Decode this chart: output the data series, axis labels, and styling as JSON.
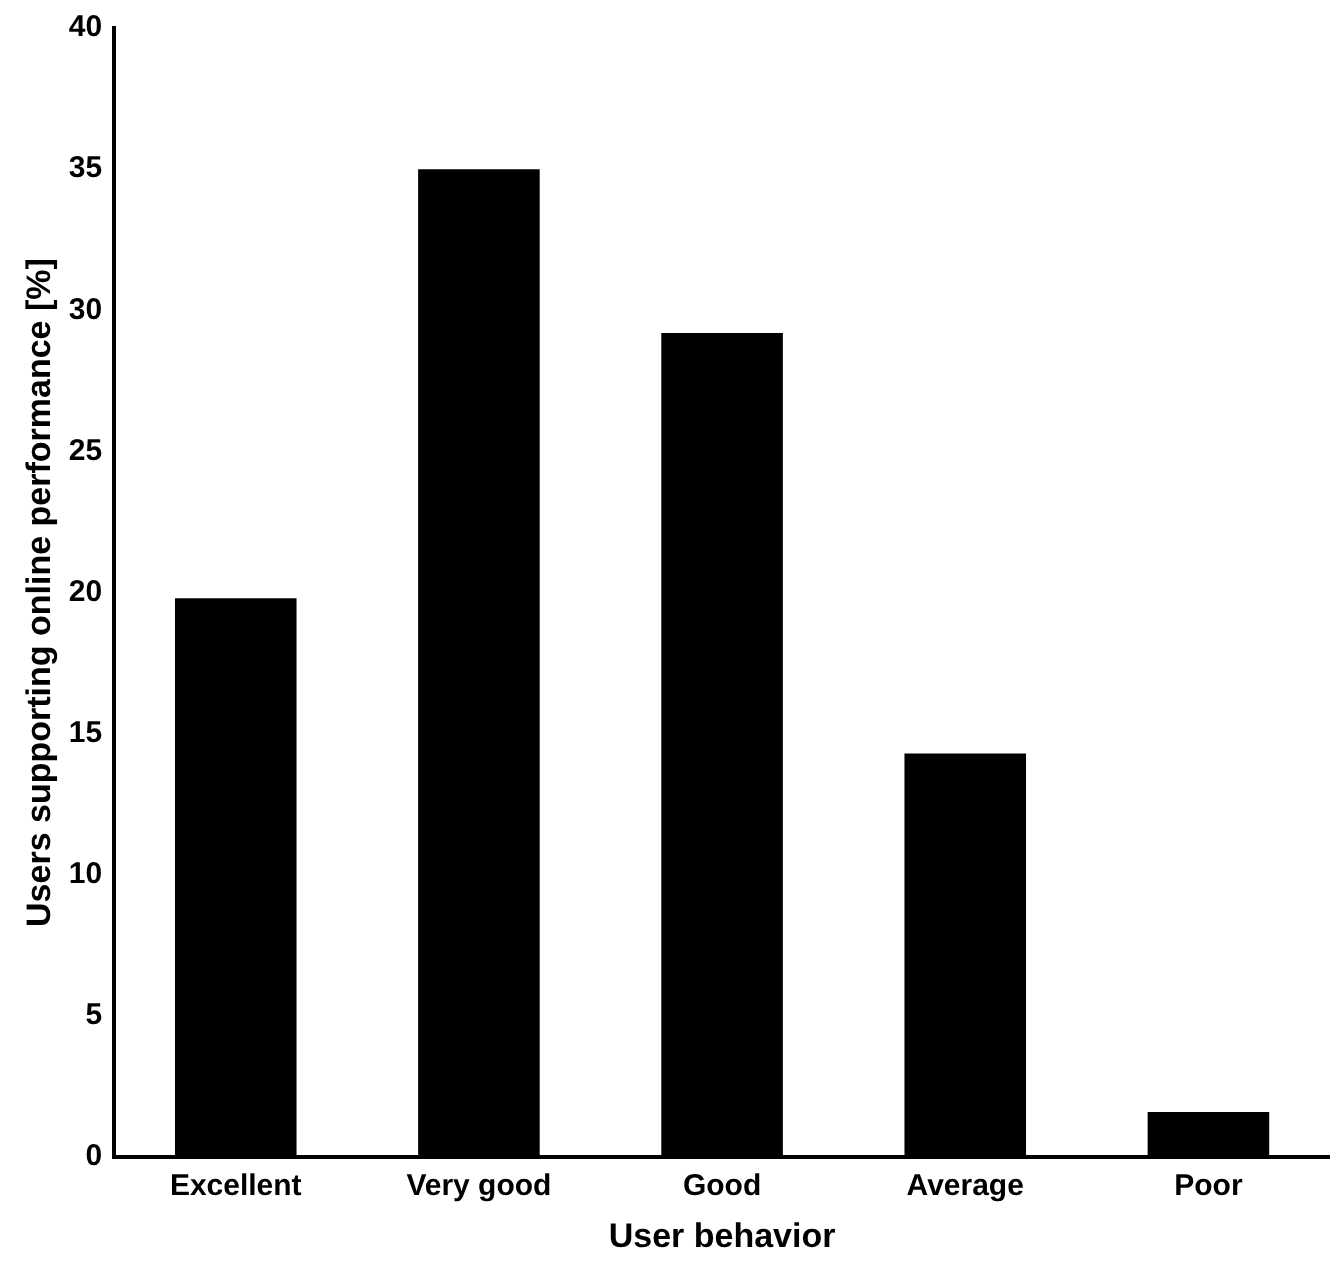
{
  "chart_data": {
    "type": "bar",
    "xlabel": "User behavior",
    "ylabel": "Users supporting online performance [%]",
    "categories": [
      "Excellent",
      "Very good",
      "Good",
      "Average",
      "Poor"
    ],
    "values": [
      19.8,
      35,
      29.2,
      14.3,
      1.6
    ],
    "color": "#000000",
    "ylim": [
      0,
      40
    ],
    "yticks": [
      0,
      5,
      10,
      15,
      20,
      25,
      30,
      35,
      40
    ],
    "grid": false,
    "legend": false
  }
}
